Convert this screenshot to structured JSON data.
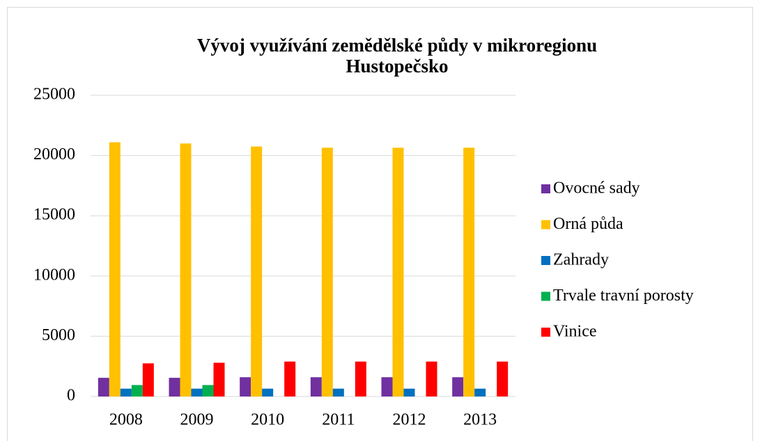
{
  "chart_data": {
    "type": "bar",
    "title": "Vývoj využívání zemědělské půdy v mikroregionu Hustopečsko",
    "categories": [
      "2008",
      "2009",
      "2010",
      "2011",
      "2012",
      "2013"
    ],
    "series": [
      {
        "name": "Ovocné sady",
        "color": "#7030a0",
        "values": [
          1550,
          1550,
          1600,
          1600,
          1600,
          1600
        ]
      },
      {
        "name": "Orná půda",
        "color": "#ffc000",
        "values": [
          21100,
          21000,
          20750,
          20650,
          20650,
          20650
        ]
      },
      {
        "name": "Zahrady",
        "color": "#0070c0",
        "values": [
          650,
          650,
          650,
          650,
          650,
          650
        ]
      },
      {
        "name": "Trvale travní porosty",
        "color": "#00b050",
        "values": [
          950,
          950,
          0,
          0,
          0,
          0
        ]
      },
      {
        "name": "Vinice",
        "color": "#ff0000",
        "values": [
          2750,
          2800,
          2900,
          2900,
          2900,
          2900
        ]
      }
    ],
    "ylim": [
      0,
      25000
    ],
    "yticks": [
      0,
      5000,
      10000,
      15000,
      20000,
      25000
    ],
    "grid": true,
    "legend": "right"
  }
}
